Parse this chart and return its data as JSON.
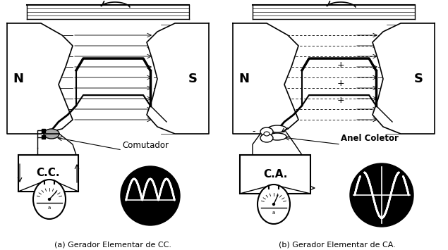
{
  "caption_left": "(a) Gerador Elementar de CC.",
  "caption_right": "(b) Gerador Elementar de CA.",
  "label_cc": "C.C.",
  "label_ca": "C.A.",
  "label_comutador": "Comutador",
  "label_anel": "Anel Coletor",
  "label_N": "N",
  "label_S": "S",
  "bg_color": "#ffffff",
  "fg_color": "#000000",
  "fig_width": 6.35,
  "fig_height": 3.55,
  "dpi": 100
}
